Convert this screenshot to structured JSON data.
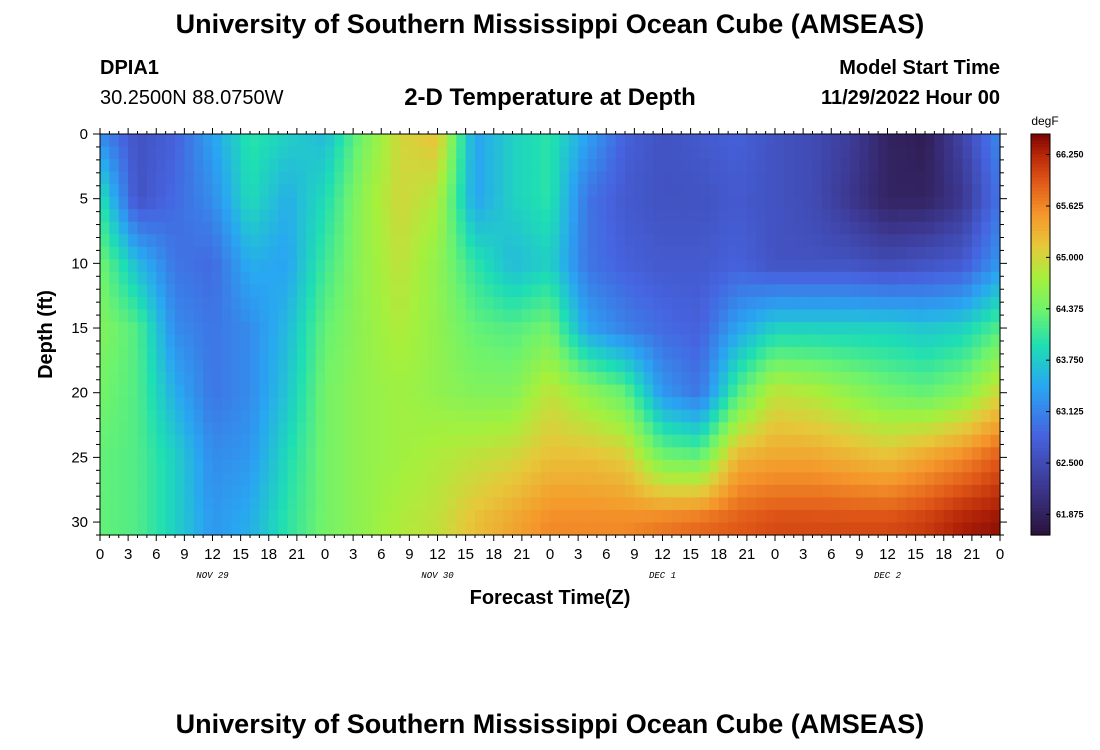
{
  "header": {
    "title": "University of Southern Mississippi Ocean Cube (AMSEAS)",
    "station": "DPIA1",
    "location": "30.2500N  88.0750W",
    "subtitle": "2-D Temperature at Depth",
    "start_label": "Model Start Time",
    "start_value": "11/29/2022 Hour 00"
  },
  "footer": {
    "title_repeat": "University of Southern Mississippi Ocean Cube (AMSEAS)"
  },
  "chart_data": {
    "type": "heatmap",
    "title": "2-D Temperature at Depth",
    "xlabel": "Forecast Time(Z)",
    "ylabel": "Depth (ft)",
    "x_hours_range": [
      0,
      96
    ],
    "ylim": [
      0,
      31
    ],
    "y_inverted": true,
    "x_ticks": [
      "0",
      "3",
      "6",
      "9",
      "12",
      "15",
      "18",
      "21",
      "0",
      "3",
      "6",
      "9",
      "12",
      "15",
      "18",
      "21",
      "0",
      "3",
      "6",
      "9",
      "12",
      "15",
      "18",
      "21",
      "0",
      "3",
      "6",
      "9",
      "12",
      "15",
      "18",
      "21",
      "0"
    ],
    "y_ticks": [
      "0",
      "5",
      "10",
      "15",
      "20",
      "25",
      "30"
    ],
    "date_labels": [
      {
        "text": "NOV 29",
        "hour": 12
      },
      {
        "text": "NOV 30",
        "hour": 36
      },
      {
        "text": "DEC 1",
        "hour": 60
      },
      {
        "text": "DEC 2",
        "hour": 84
      }
    ],
    "colorbar": {
      "units": "degF",
      "min": 61.625,
      "max": 66.5,
      "tick_labels": [
        "66.250",
        "65.625",
        "65.000",
        "64.375",
        "63.750",
        "63.125",
        "62.500",
        "61.875"
      ],
      "tick_values": [
        66.25,
        65.625,
        65.0,
        64.375,
        63.75,
        63.125,
        62.5,
        61.875
      ]
    },
    "temperature_field_estimate": {
      "note": "Approximate temperature (degF) by forecast hour and depth (ft), estimated from colors",
      "hours": [
        0,
        4,
        8,
        12,
        16,
        20,
        24,
        28,
        32,
        36,
        40,
        44,
        48,
        52,
        56,
        60,
        64,
        68,
        72,
        76,
        80,
        84,
        88,
        92,
        96
      ],
      "depths": [
        0,
        5,
        10,
        15,
        20,
        25,
        30
      ],
      "values": [
        [
          63.2,
          62.6,
          62.8,
          63.4,
          64.0,
          63.8,
          63.6,
          64.4,
          65.0,
          65.2,
          63.4,
          63.8,
          64.0,
          63.4,
          62.8,
          62.6,
          62.7,
          62.8,
          62.6,
          62.5,
          62.3,
          61.9,
          61.8,
          62.4,
          63.2
        ],
        [
          64.0,
          62.6,
          62.9,
          63.2,
          63.9,
          63.5,
          63.9,
          64.6,
          65.0,
          64.8,
          63.4,
          63.8,
          64.0,
          63.0,
          62.7,
          62.6,
          62.6,
          62.7,
          62.6,
          62.5,
          62.2,
          61.9,
          61.9,
          62.2,
          63.0
        ],
        [
          64.4,
          63.6,
          63.0,
          62.9,
          63.5,
          63.4,
          64.1,
          64.6,
          64.9,
          64.6,
          64.0,
          63.6,
          63.8,
          63.0,
          62.8,
          62.7,
          62.7,
          62.8,
          62.6,
          62.6,
          62.6,
          62.5,
          62.6,
          62.7,
          63.3
        ],
        [
          64.5,
          64.2,
          63.2,
          63.0,
          63.2,
          63.6,
          64.3,
          64.6,
          64.8,
          64.6,
          64.3,
          64.2,
          64.4,
          63.4,
          63.1,
          62.9,
          62.8,
          63.4,
          63.8,
          63.8,
          63.8,
          63.8,
          63.7,
          63.8,
          64.2
        ],
        [
          64.4,
          64.2,
          63.5,
          63.0,
          63.2,
          63.7,
          64.4,
          64.6,
          64.7,
          64.6,
          64.5,
          64.5,
          64.9,
          64.6,
          64.3,
          63.3,
          63.0,
          64.2,
          64.9,
          64.8,
          64.6,
          64.4,
          64.3,
          64.5,
          65.0
        ],
        [
          64.3,
          64.2,
          63.8,
          63.2,
          63.3,
          63.9,
          64.4,
          64.6,
          64.7,
          64.8,
          64.9,
          65.0,
          65.2,
          65.2,
          65.1,
          64.4,
          64.3,
          65.3,
          65.4,
          65.4,
          65.3,
          65.2,
          65.4,
          65.6,
          65.9
        ],
        [
          64.3,
          64.2,
          63.8,
          63.3,
          63.5,
          64.0,
          64.4,
          64.6,
          64.8,
          64.9,
          65.2,
          65.4,
          65.6,
          65.6,
          65.6,
          65.7,
          65.8,
          65.9,
          66.0,
          66.0,
          66.0,
          66.0,
          66.1,
          66.3,
          66.4
        ]
      ]
    }
  }
}
